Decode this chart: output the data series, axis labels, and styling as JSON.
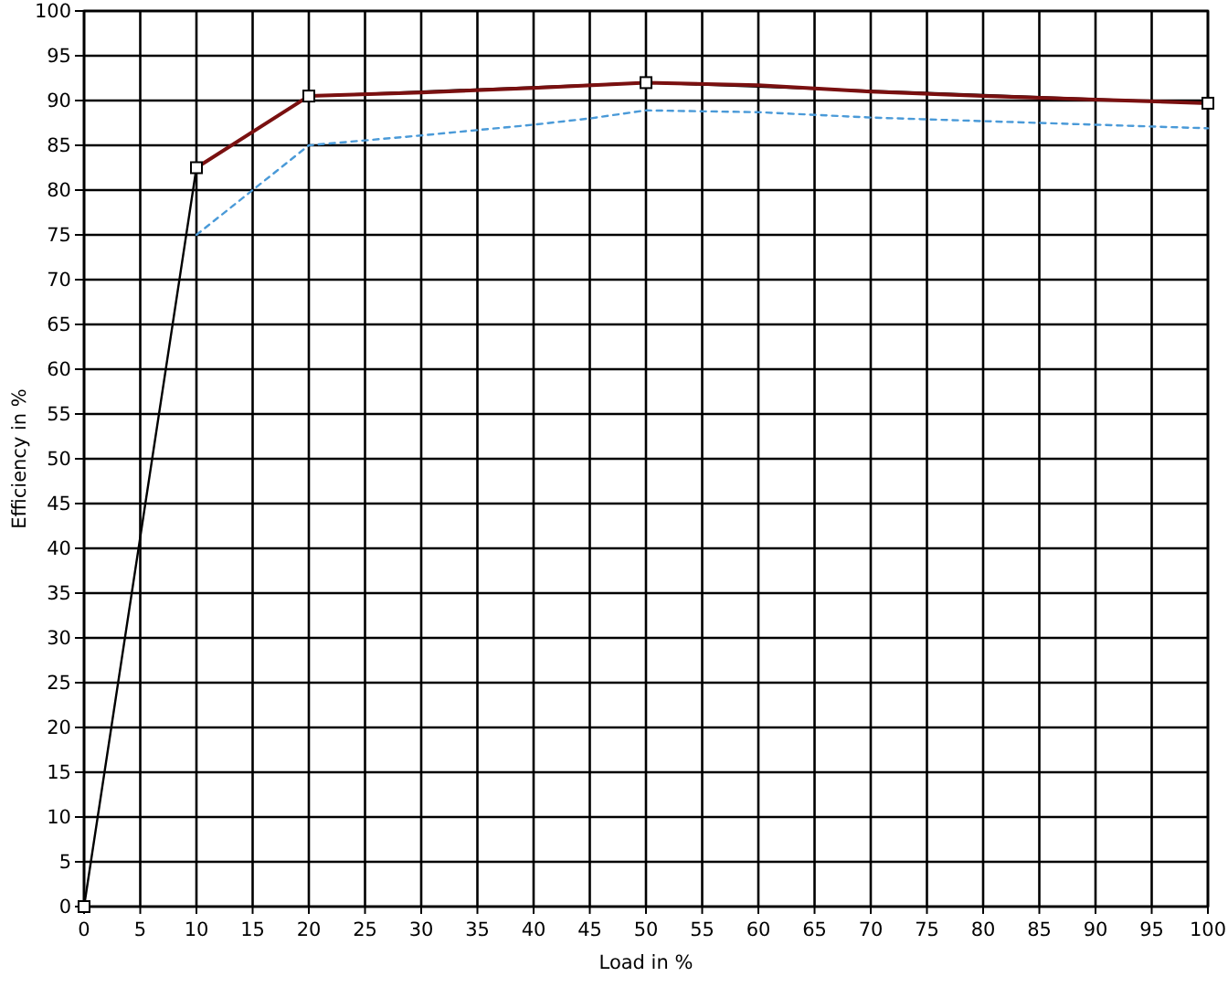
{
  "chart_data": {
    "type": "line",
    "xlabel": "Load in %",
    "ylabel": "Efficiency in %",
    "xlim": [
      0,
      100
    ],
    "xticks": [
      0,
      5,
      10,
      15,
      20,
      25,
      30,
      35,
      40,
      45,
      50,
      55,
      60,
      65,
      70,
      75,
      80,
      85,
      90,
      95,
      100
    ],
    "ylim": [
      0,
      100
    ],
    "yticks": [
      0,
      5,
      10,
      15,
      20,
      25,
      30,
      35,
      40,
      45,
      50,
      55,
      60,
      65,
      70,
      75,
      80,
      85,
      90,
      95,
      100
    ],
    "grid": true,
    "series": [
      {
        "color": "#000000",
        "marker": "square",
        "line_style": "solid",
        "x": [
          0,
          10,
          20,
          50,
          100
        ],
        "values": [
          0,
          82.5,
          90.5,
          92,
          89.7
        ]
      },
      {
        "color": "#7a1010",
        "marker": "none",
        "line_style": "solid",
        "x": [
          10,
          20,
          30,
          40,
          50,
          60,
          70,
          80,
          90,
          100
        ],
        "values": [
          82.5,
          90.5,
          90.9,
          91.4,
          92,
          91.7,
          91,
          90.5,
          90.1,
          89.7
        ]
      },
      {
        "color": "#4a9ad8",
        "marker": "none",
        "line_style": "dashed",
        "x": [
          10,
          20,
          30,
          40,
          45,
          50,
          60,
          70,
          80,
          90,
          100
        ],
        "values": [
          75,
          85,
          86.1,
          87.3,
          88,
          88.9,
          88.7,
          88.1,
          87.7,
          87.3,
          86.9
        ]
      }
    ]
  }
}
